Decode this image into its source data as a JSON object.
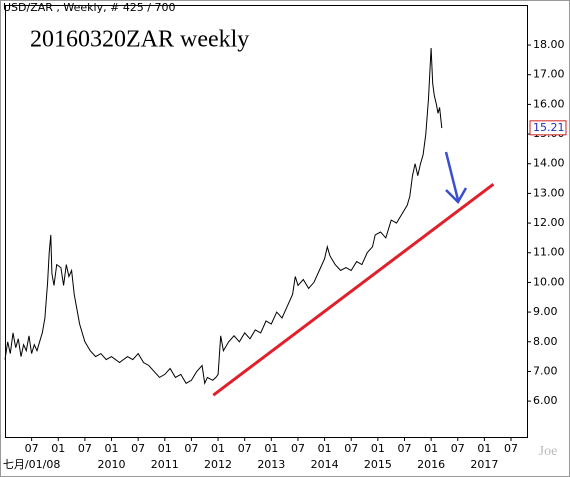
{
  "chart_data": {
    "type": "line",
    "header": "USD/ZAR , Weekly, # 425 / 700",
    "title": "20160320ZAR weekly",
    "watermark": "Joe",
    "series": [
      {
        "name": "USD/ZAR",
        "color": "#000000",
        "x": [
          2008.0,
          2008.05,
          2008.1,
          2008.15,
          2008.2,
          2008.25,
          2008.3,
          2008.35,
          2008.4,
          2008.45,
          2008.5,
          2008.55,
          2008.6,
          2008.65,
          2008.7,
          2008.75,
          2008.8,
          2008.83,
          2008.86,
          2008.88,
          2008.92,
          2008.97,
          2009.05,
          2009.1,
          2009.15,
          2009.2,
          2009.25,
          2009.3,
          2009.35,
          2009.4,
          2009.5,
          2009.6,
          2009.7,
          2009.8,
          2009.9,
          2010.0,
          2010.15,
          2010.3,
          2010.4,
          2010.5,
          2010.6,
          2010.7,
          2010.8,
          2010.9,
          2011.0,
          2011.1,
          2011.2,
          2011.3,
          2011.4,
          2011.5,
          2011.6,
          2011.7,
          2011.75,
          2011.8,
          2011.9,
          2011.96,
          2012.0,
          2012.05,
          2012.1,
          2012.2,
          2012.3,
          2012.4,
          2012.5,
          2012.6,
          2012.7,
          2012.8,
          2012.9,
          2013.0,
          2013.1,
          2013.2,
          2013.3,
          2013.4,
          2013.45,
          2013.5,
          2013.6,
          2013.7,
          2013.8,
          2013.9,
          2014.0,
          2014.05,
          2014.1,
          2014.2,
          2014.3,
          2014.4,
          2014.5,
          2014.6,
          2014.7,
          2014.8,
          2014.9,
          2014.95,
          2015.05,
          2015.15,
          2015.25,
          2015.35,
          2015.45,
          2015.55,
          2015.6,
          2015.65,
          2015.7,
          2015.75,
          2015.8,
          2015.85,
          2015.9,
          2015.95,
          2016.0,
          2016.03,
          2016.06,
          2016.1,
          2016.13,
          2016.16,
          2016.2
        ],
        "values": [
          7.4,
          8.0,
          7.6,
          8.3,
          7.8,
          8.1,
          7.5,
          7.9,
          7.7,
          8.2,
          7.6,
          7.9,
          7.7,
          8.0,
          8.3,
          8.8,
          10.0,
          11.0,
          11.6,
          10.3,
          9.9,
          10.6,
          10.5,
          9.9,
          10.6,
          10.2,
          10.4,
          9.6,
          9.1,
          8.6,
          8.0,
          7.7,
          7.5,
          7.6,
          7.4,
          7.5,
          7.3,
          7.5,
          7.4,
          7.6,
          7.3,
          7.2,
          7.0,
          6.8,
          6.9,
          7.1,
          6.8,
          6.9,
          6.6,
          6.7,
          7.0,
          7.2,
          6.6,
          6.8,
          6.7,
          6.8,
          6.9,
          8.2,
          7.7,
          8.0,
          8.2,
          8.0,
          8.3,
          8.1,
          8.4,
          8.3,
          8.7,
          8.6,
          9.0,
          8.8,
          9.2,
          9.6,
          10.2,
          9.9,
          10.1,
          9.8,
          10.0,
          10.4,
          10.8,
          11.2,
          10.9,
          10.6,
          10.4,
          10.5,
          10.4,
          10.7,
          10.6,
          11.0,
          11.2,
          11.6,
          11.7,
          11.5,
          12.1,
          12.0,
          12.3,
          12.6,
          12.9,
          13.6,
          14.0,
          13.6,
          14.0,
          14.3,
          15.0,
          16.2,
          17.9,
          16.7,
          16.3,
          16.0,
          15.7,
          15.9,
          15.2
        ]
      }
    ],
    "last_price": 15.21,
    "trendline": {
      "color": "#e0202a",
      "x": [
        2011.91,
        2017.17
      ],
      "y": [
        6.2,
        13.31
      ]
    },
    "xlim": [
      2008.0,
      2017.8
    ],
    "ylim": [
      4.79,
      19.35
    ],
    "yticks": [
      {
        "value": 6,
        "label": "6.00"
      },
      {
        "value": 7,
        "label": "7.00"
      },
      {
        "value": 8,
        "label": "8.00"
      },
      {
        "value": 9,
        "label": "9.00"
      },
      {
        "value": 10,
        "label": "10.00"
      },
      {
        "value": 11,
        "label": "11.00"
      },
      {
        "value": 12,
        "label": "12.00"
      },
      {
        "value": 13,
        "label": "13.00"
      },
      {
        "value": 14,
        "label": "14.00"
      },
      {
        "value": 15,
        "label": "15.00"
      },
      {
        "value": 16,
        "label": "16.00"
      },
      {
        "value": 17,
        "label": "17.00"
      },
      {
        "value": 18,
        "label": "18.00"
      }
    ],
    "xticks": [
      {
        "value": 2008.5,
        "label": "07"
      },
      {
        "value": 2009.0,
        "label": "01"
      },
      {
        "value": 2009.5,
        "label": "07"
      },
      {
        "value": 2010.0,
        "label": "01"
      },
      {
        "value": 2010.5,
        "label": "07"
      },
      {
        "value": 2011.0,
        "label": "01"
      },
      {
        "value": 2011.5,
        "label": "07"
      },
      {
        "value": 2012.0,
        "label": "01"
      },
      {
        "value": 2012.5,
        "label": "07"
      },
      {
        "value": 2013.0,
        "label": "01"
      },
      {
        "value": 2013.5,
        "label": "07"
      },
      {
        "value": 2014.0,
        "label": "01"
      },
      {
        "value": 2014.5,
        "label": "07"
      },
      {
        "value": 2015.0,
        "label": "01"
      },
      {
        "value": 2015.5,
        "label": "07"
      },
      {
        "value": 2016.0,
        "label": "01"
      },
      {
        "value": 2016.5,
        "label": "07"
      },
      {
        "value": 2017.0,
        "label": "01"
      },
      {
        "value": 2017.5,
        "label": "07"
      }
    ],
    "xlabels2": [
      {
        "value": 2008.5,
        "label": "七月/01/08"
      },
      {
        "value": 2010.0,
        "label": "2010"
      },
      {
        "value": 2011.0,
        "label": "2011"
      },
      {
        "value": 2012.0,
        "label": "2012"
      },
      {
        "value": 2013.0,
        "label": "2013"
      },
      {
        "value": 2014.0,
        "label": "2014"
      },
      {
        "value": 2015.0,
        "label": "2015"
      },
      {
        "value": 2016.0,
        "label": "2016"
      },
      {
        "value": 2017.0,
        "label": "2017"
      }
    ]
  }
}
